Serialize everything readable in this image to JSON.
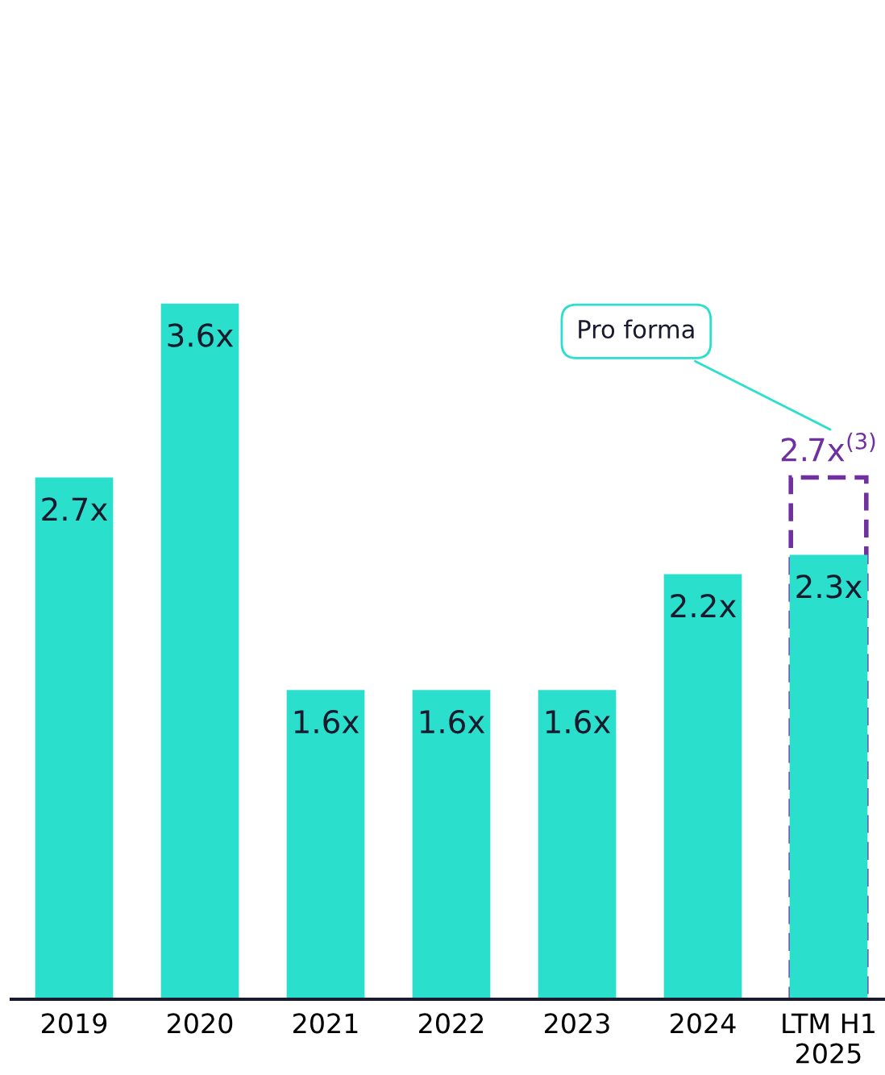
{
  "chart_data": {
    "type": "bar",
    "categories": [
      "2019",
      "2020",
      "2021",
      "2022",
      "2023",
      "2024",
      "LTM H1\n2025"
    ],
    "series": [
      {
        "color": "#2ae0cc",
        "line_style": "solid",
        "values": [
          2.7,
          3.6,
          1.6,
          1.6,
          1.6,
          2.2,
          2.3
        ],
        "value_labels": [
          "2.7x",
          "3.6x",
          "1.6x",
          "1.6x",
          "1.6x",
          "2.2x",
          "2.3x"
        ]
      },
      {
        "color": "#7030a0",
        "line_style": "dashed",
        "values": [
          null,
          null,
          null,
          null,
          null,
          null,
          2.7
        ],
        "value_labels": [
          null,
          null,
          null,
          null,
          null,
          null,
          "2.7x$^{(3)}$"
        ]
      }
    ],
    "annotations": [
      "Pro forma"
    ],
    "grid": false,
    "legend": false
  }
}
